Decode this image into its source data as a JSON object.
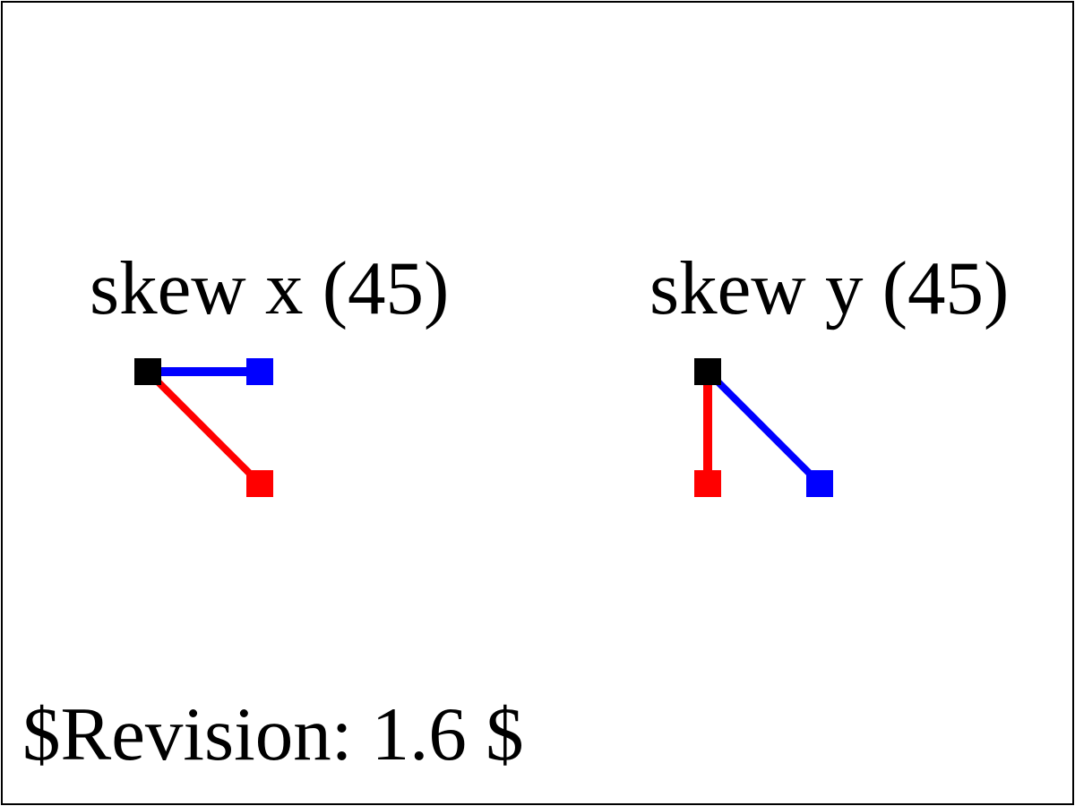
{
  "labels": {
    "skew_x": "skew x (45)",
    "skew_y": "skew y (45)",
    "revision": "$Revision: 1.6 $"
  },
  "colors": {
    "origin": "#000000",
    "x_axis": "#0000ff",
    "y_axis": "#ff0000",
    "frame": "#000000",
    "background": "#ffffff"
  }
}
